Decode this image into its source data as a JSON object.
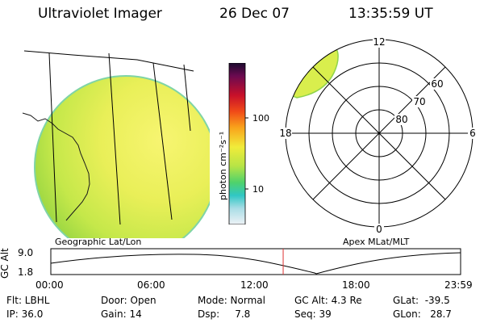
{
  "header": {
    "title": "Ultraviolet Imager",
    "date": "26 Dec 07",
    "time": "13:35:59 UT"
  },
  "geo_panel": {
    "label": "Geographic Lat/Lon"
  },
  "colorbar": {
    "unit_label": "photon cm⁻²s⁻¹",
    "tick_100": "100",
    "tick_10": "10"
  },
  "polar_panel": {
    "label": "Apex MLat/MLT",
    "mlt_labels": {
      "top": "12",
      "left": "18",
      "right": "6",
      "bottom": "0"
    },
    "lat_labels": {
      "l60": "60",
      "l70": "70",
      "l80": "80"
    }
  },
  "altitude_plot": {
    "ylabel": "GC Alt",
    "yticks": [
      "9.0",
      "1.8"
    ],
    "xticks": [
      "00:00",
      "06:00",
      "12:00",
      "18:00",
      "23:59"
    ],
    "current_time_frac": 0.567
  },
  "info": {
    "flt": "Flt: LBHL",
    "ip": "IP: 36.0",
    "door": "Door: Open",
    "gain": "Gain: 14",
    "mode": "Mode: Normal",
    "dsp": "Dsp:     7.8",
    "gc_alt": "GC Alt: 4.3 Re",
    "seq": "Seq: 39",
    "glat": "GLat:  -39.5",
    "glon": "GLon:   28.7"
  }
}
